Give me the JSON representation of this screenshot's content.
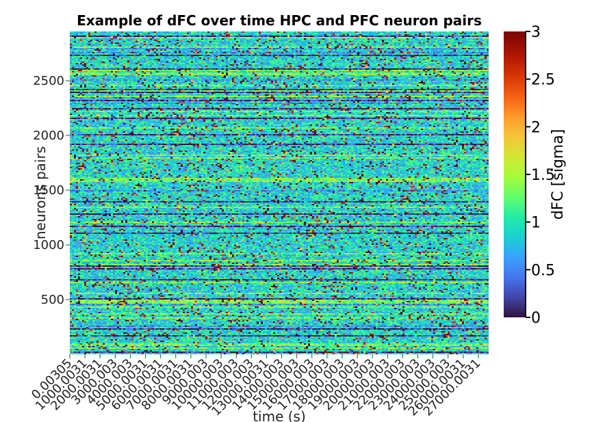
{
  "chart_data": {
    "type": "heatmap",
    "title": "Example of dFC over time HPC and PFC neuron pairs",
    "xlabel": "time (s)",
    "ylabel": "neurons pairs",
    "colorbar_label": "dFC [sigma]",
    "colormap": "turbo",
    "y_range": [
      0,
      2950
    ],
    "c_range": [
      0,
      3
    ],
    "y_ticks": [
      500,
      1000,
      1500,
      2000,
      2500
    ],
    "x_tick_labels": [
      "0.00305",
      "1000.0031",
      "2000.0031",
      "3000.003",
      "4000.003",
      "5000.0031",
      "6000.0031",
      "7000.0031",
      "8000.0031",
      "9000.003",
      "10000.003",
      "11000.003",
      "12000.003",
      "13000.0031",
      "14000.003",
      "15000.003",
      "16000.003",
      "17000.003",
      "18000.003",
      "19000.003",
      "20000.003",
      "21000.003",
      "22000.003",
      "23000.003",
      "24000.003",
      "25000.003",
      "26000.0031",
      "27000.0031"
    ],
    "colorbar_ticks": [
      "0",
      "0.5",
      "1",
      "1.5",
      "2",
      "2.5",
      "3"
    ],
    "colors": {
      "background_cell": "#3b3fa0",
      "low": "#30123b",
      "mid": "#1ae4b6",
      "high": "#7a0403"
    }
  }
}
